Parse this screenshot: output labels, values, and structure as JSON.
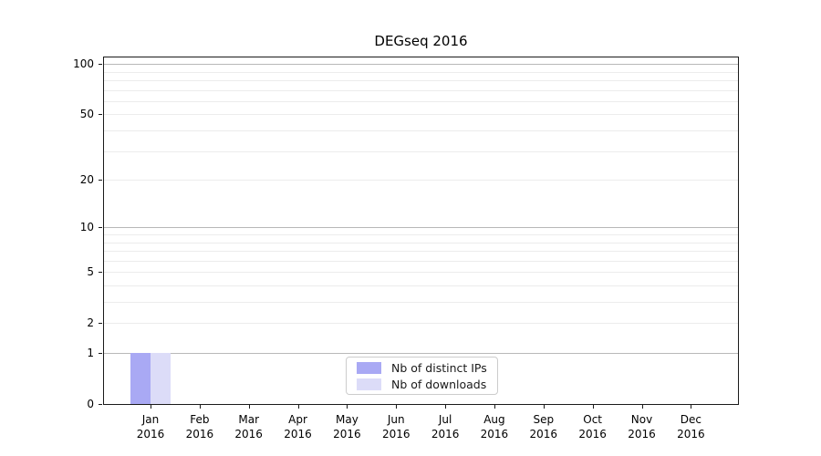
{
  "chart_data": {
    "type": "bar",
    "title": "DEGseq 2016",
    "categories": [
      "Jan",
      "Feb",
      "Mar",
      "Apr",
      "May",
      "Jun",
      "Jul",
      "Aug",
      "Sep",
      "Oct",
      "Nov",
      "Dec"
    ],
    "x_year_label": "2016",
    "series": [
      {
        "name": "Nb of distinct IPs",
        "color": "#a9a9f4",
        "values": [
          1,
          0,
          0,
          0,
          0,
          0,
          0,
          0,
          0,
          0,
          0,
          0
        ]
      },
      {
        "name": "Nb of downloads",
        "color": "#dcdcf8",
        "values": [
          1,
          0,
          0,
          0,
          0,
          0,
          0,
          0,
          0,
          0,
          0,
          0
        ]
      }
    ],
    "xlabel": "",
    "ylabel": "",
    "y_axis": {
      "scale": "log1p",
      "ticks": [
        0,
        1,
        2,
        5,
        10,
        20,
        50,
        100
      ],
      "major_gridlines": [
        1,
        10,
        100
      ],
      "minor_gridlines": [
        2,
        3,
        4,
        5,
        6,
        7,
        8,
        9,
        20,
        30,
        40,
        50,
        60,
        70,
        80,
        90
      ],
      "range": [
        0,
        110
      ],
      "grid": true
    },
    "legend": {
      "position": "lower-center",
      "entries": [
        "Nb of distinct IPs",
        "Nb of downloads"
      ]
    }
  },
  "colors": {
    "background": "#ffffff",
    "axis": "#1a1a1a",
    "major_grid": "#b8b8b8",
    "minor_grid": "#ececec",
    "legend_border": "#cccccc",
    "bar_distinct_ips": "#a9a9f4",
    "bar_downloads": "#dcdcf8"
  }
}
